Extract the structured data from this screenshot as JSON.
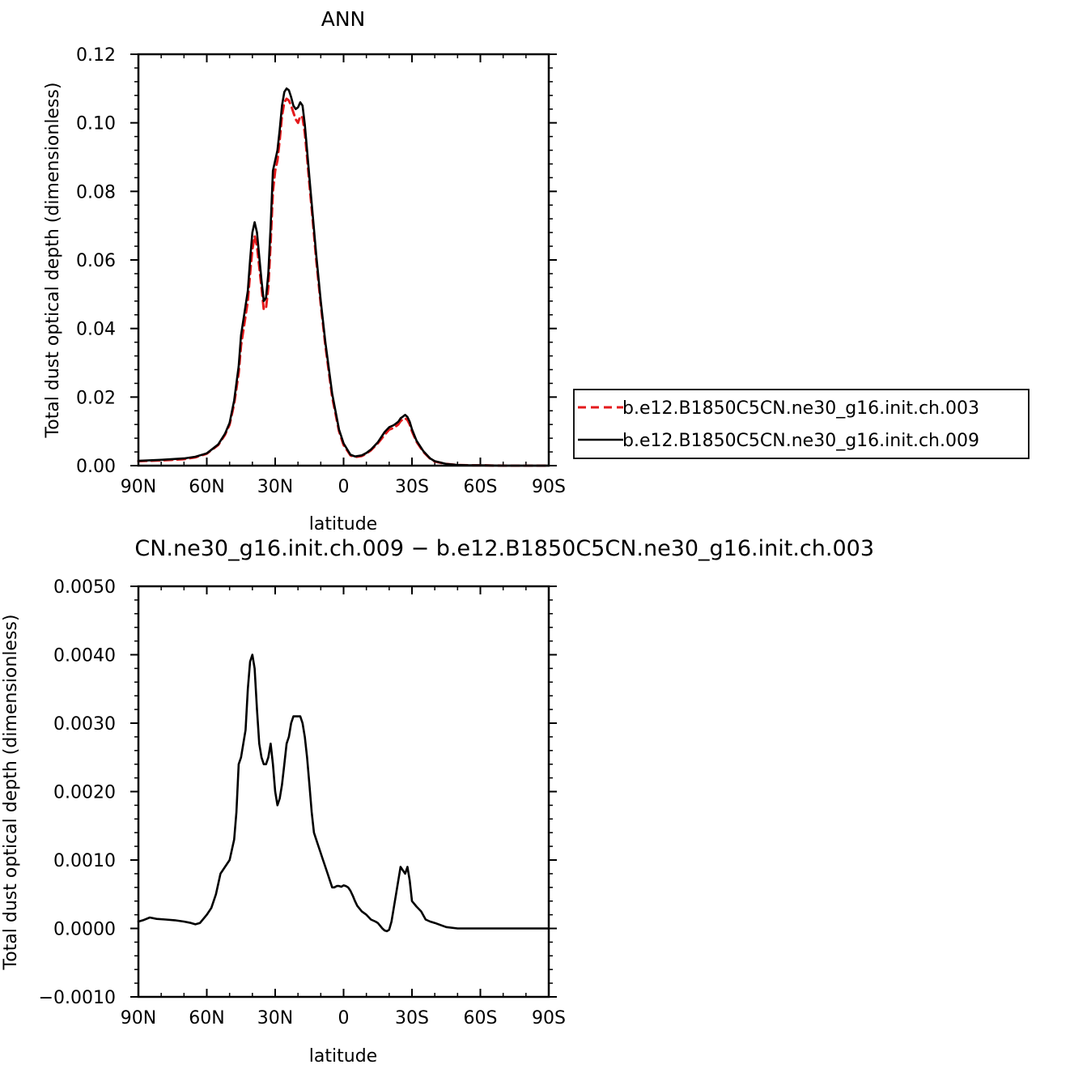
{
  "chart_data": [
    {
      "type": "line",
      "title": "ANN",
      "xlabel": "latitude",
      "ylabel": "Total dust optical depth (dimensionless)",
      "xlim": [
        90,
        -90
      ],
      "ylim": [
        0,
        0.12
      ],
      "xticks": [
        {
          "value": 90,
          "label": "90N"
        },
        {
          "value": 60,
          "label": "60N"
        },
        {
          "value": 30,
          "label": "30N"
        },
        {
          "value": 0,
          "label": "0"
        },
        {
          "value": -30,
          "label": "30S"
        },
        {
          "value": -60,
          "label": "60S"
        },
        {
          "value": -90,
          "label": "90S"
        }
      ],
      "yticks": [
        {
          "value": 0,
          "label": "0.00"
        },
        {
          "value": 0.02,
          "label": "0.02"
        },
        {
          "value": 0.04,
          "label": "0.04"
        },
        {
          "value": 0.06,
          "label": "0.06"
        },
        {
          "value": 0.08,
          "label": "0.08"
        },
        {
          "value": 0.1,
          "label": "0.10"
        },
        {
          "value": 0.12,
          "label": "0.12"
        }
      ],
      "legend_position": "right",
      "series": [
        {
          "name": "b.e12.B1850C5CN.ne30_g16.init.ch.003",
          "color": "#e41a1c",
          "dash": "dashed",
          "x": [
            90,
            80,
            70,
            65,
            60,
            55,
            52,
            50,
            48,
            46,
            45,
            42,
            41,
            40,
            39,
            38,
            36,
            35,
            34,
            33,
            32,
            31,
            30,
            29,
            28,
            27,
            26,
            25,
            24,
            23,
            22,
            21,
            20,
            19,
            18,
            17,
            16,
            15,
            14,
            12,
            10,
            8,
            5,
            2,
            0,
            -3,
            -5,
            -8,
            -10,
            -12,
            -15,
            -18,
            -20,
            -22,
            -24,
            -25,
            -26,
            -27,
            -28,
            -29,
            -30,
            -32,
            -35,
            -38,
            -40,
            -45,
            -50,
            -55,
            -60,
            -70,
            -80,
            -90
          ],
          "y": [
            0.0013,
            0.0015,
            0.0019,
            0.0024,
            0.0035,
            0.006,
            0.009,
            0.012,
            0.018,
            0.027,
            0.035,
            0.048,
            0.056,
            0.063,
            0.067,
            0.064,
            0.052,
            0.0455,
            0.046,
            0.052,
            0.065,
            0.08,
            0.086,
            0.089,
            0.095,
            0.102,
            0.106,
            0.107,
            0.1065,
            0.105,
            0.103,
            0.101,
            0.1,
            0.102,
            0.1015,
            0.097,
            0.09,
            0.082,
            0.075,
            0.06,
            0.047,
            0.035,
            0.02,
            0.01,
            0.006,
            0.003,
            0.0025,
            0.0028,
            0.0035,
            0.0045,
            0.0065,
            0.009,
            0.0105,
            0.011,
            0.012,
            0.013,
            0.0135,
            0.0138,
            0.0133,
            0.012,
            0.01,
            0.007,
            0.004,
            0.002,
            0.0012,
            0.0005,
            0.0002,
            0.0001,
            0.0001,
            0.0,
            0.0,
            0.0
          ]
        },
        {
          "name": "b.e12.B1850C5CN.ne30_g16.init.ch.009",
          "color": "#000000",
          "dash": "solid",
          "x": [
            90,
            80,
            70,
            65,
            60,
            55,
            52,
            50,
            48,
            46,
            45,
            42,
            41,
            40,
            39,
            38,
            36,
            35,
            34,
            33,
            32,
            31,
            30,
            29,
            28,
            27,
            26,
            25,
            24,
            23,
            22,
            21,
            20,
            19,
            18,
            17,
            16,
            15,
            14,
            12,
            10,
            8,
            5,
            2,
            0,
            -3,
            -5,
            -8,
            -10,
            -12,
            -15,
            -18,
            -20,
            -22,
            -24,
            -25,
            -26,
            -27,
            -28,
            -29,
            -30,
            -32,
            -35,
            -38,
            -40,
            -45,
            -50,
            -55,
            -60,
            -70,
            -80,
            -90
          ],
          "y": [
            0.0014,
            0.0017,
            0.0021,
            0.0026,
            0.0036,
            0.0062,
            0.0093,
            0.0125,
            0.019,
            0.029,
            0.038,
            0.051,
            0.06,
            0.068,
            0.071,
            0.068,
            0.054,
            0.048,
            0.049,
            0.056,
            0.07,
            0.086,
            0.089,
            0.092,
            0.098,
            0.105,
            0.109,
            0.11,
            0.1095,
            0.1075,
            0.105,
            0.104,
            0.1045,
            0.106,
            0.105,
            0.0995,
            0.092,
            0.084,
            0.0765,
            0.0615,
            0.048,
            0.036,
            0.021,
            0.0105,
            0.0065,
            0.0032,
            0.0027,
            0.003,
            0.0037,
            0.0047,
            0.0068,
            0.0098,
            0.0112,
            0.0118,
            0.0128,
            0.0138,
            0.0143,
            0.0148,
            0.0142,
            0.0128,
            0.0106,
            0.0073,
            0.0042,
            0.0021,
            0.0013,
            0.0005,
            0.0002,
            0.0001,
            0.0001,
            0.0,
            0.0,
            0.0
          ]
        }
      ]
    },
    {
      "type": "line",
      "title": "CN.ne30_g16.init.ch.009 − b.e12.B1850C5CN.ne30_g16.init.ch.003",
      "xlabel": "latitude",
      "ylabel": "Total dust optical depth (dimensionless)",
      "xlim": [
        90,
        -90
      ],
      "ylim": [
        -0.001,
        0.005
      ],
      "xticks": [
        {
          "value": 90,
          "label": "90N"
        },
        {
          "value": 60,
          "label": "60N"
        },
        {
          "value": 30,
          "label": "30N"
        },
        {
          "value": 0,
          "label": "0"
        },
        {
          "value": -30,
          "label": "30S"
        },
        {
          "value": -60,
          "label": "60S"
        },
        {
          "value": -90,
          "label": "90S"
        }
      ],
      "yticks": [
        {
          "value": -0.001,
          "label": "−0.0010"
        },
        {
          "value": 0,
          "label": "0.0000"
        },
        {
          "value": 0.001,
          "label": "0.0010"
        },
        {
          "value": 0.002,
          "label": "0.0020"
        },
        {
          "value": 0.003,
          "label": "0.0030"
        },
        {
          "value": 0.004,
          "label": "0.0040"
        },
        {
          "value": 0.005,
          "label": "0.0050"
        }
      ],
      "series": [
        {
          "color": "#000000",
          "dash": "solid",
          "x": [
            90,
            88,
            85,
            82,
            78,
            74,
            70,
            67,
            65,
            63,
            60,
            58,
            56,
            54,
            52,
            50,
            48,
            47,
            46,
            45,
            44,
            43,
            42,
            41,
            40,
            39,
            38,
            37,
            36,
            35,
            34,
            33,
            32,
            31,
            30,
            29,
            28,
            27,
            26,
            25,
            24,
            23,
            22,
            21,
            20,
            19,
            18,
            17,
            16,
            15,
            14,
            13,
            12,
            11,
            10,
            9,
            8,
            7,
            6,
            5,
            4,
            3,
            2,
            1,
            0,
            -1,
            -2,
            -3,
            -4,
            -5,
            -6,
            -8,
            -10,
            -12,
            -14,
            -15,
            -16,
            -17,
            -18,
            -19,
            -20,
            -21,
            -22,
            -23,
            -24,
            -25,
            -26,
            -27,
            -28,
            -29,
            -30,
            -32,
            -34,
            -36,
            -38,
            -40,
            -45,
            -50,
            -55,
            -60,
            -70,
            -80,
            -90
          ],
          "y": [
            0.0001,
            0.00012,
            0.00016,
            0.00014,
            0.00013,
            0.00012,
            0.0001,
            8e-05,
            6e-05,
            8e-05,
            0.0002,
            0.0003,
            0.0005,
            0.0008,
            0.0009,
            0.001,
            0.0013,
            0.0017,
            0.0024,
            0.0025,
            0.0027,
            0.0029,
            0.0035,
            0.0039,
            0.004,
            0.0038,
            0.0032,
            0.0027,
            0.0025,
            0.0024,
            0.0024,
            0.0025,
            0.0027,
            0.0024,
            0.002,
            0.0018,
            0.0019,
            0.0021,
            0.0024,
            0.0027,
            0.0028,
            0.003,
            0.0031,
            0.0031,
            0.0031,
            0.0031,
            0.003,
            0.0028,
            0.0025,
            0.0021,
            0.0017,
            0.0014,
            0.0013,
            0.0012,
            0.0011,
            0.001,
            0.0009,
            0.0008,
            0.0007,
            0.0006,
            0.0006,
            0.00062,
            0.00062,
            0.00061,
            0.00063,
            0.00062,
            0.0006,
            0.00055,
            0.00048,
            0.0004,
            0.00033,
            0.00025,
            0.0002,
            0.00013,
            0.0001,
            8e-05,
            4e-05,
            0.0,
            -3e-05,
            -4e-05,
            -2e-05,
            0.0001,
            0.0003,
            0.0005,
            0.0007,
            0.0009,
            0.00085,
            0.0008,
            0.0009,
            0.0007,
            0.0004,
            0.00032,
            0.00025,
            0.00013,
            0.0001,
            8e-05,
            2e-05,
            0.0,
            0.0,
            0.0,
            0.0,
            0.0,
            0.0
          ]
        }
      ]
    }
  ]
}
